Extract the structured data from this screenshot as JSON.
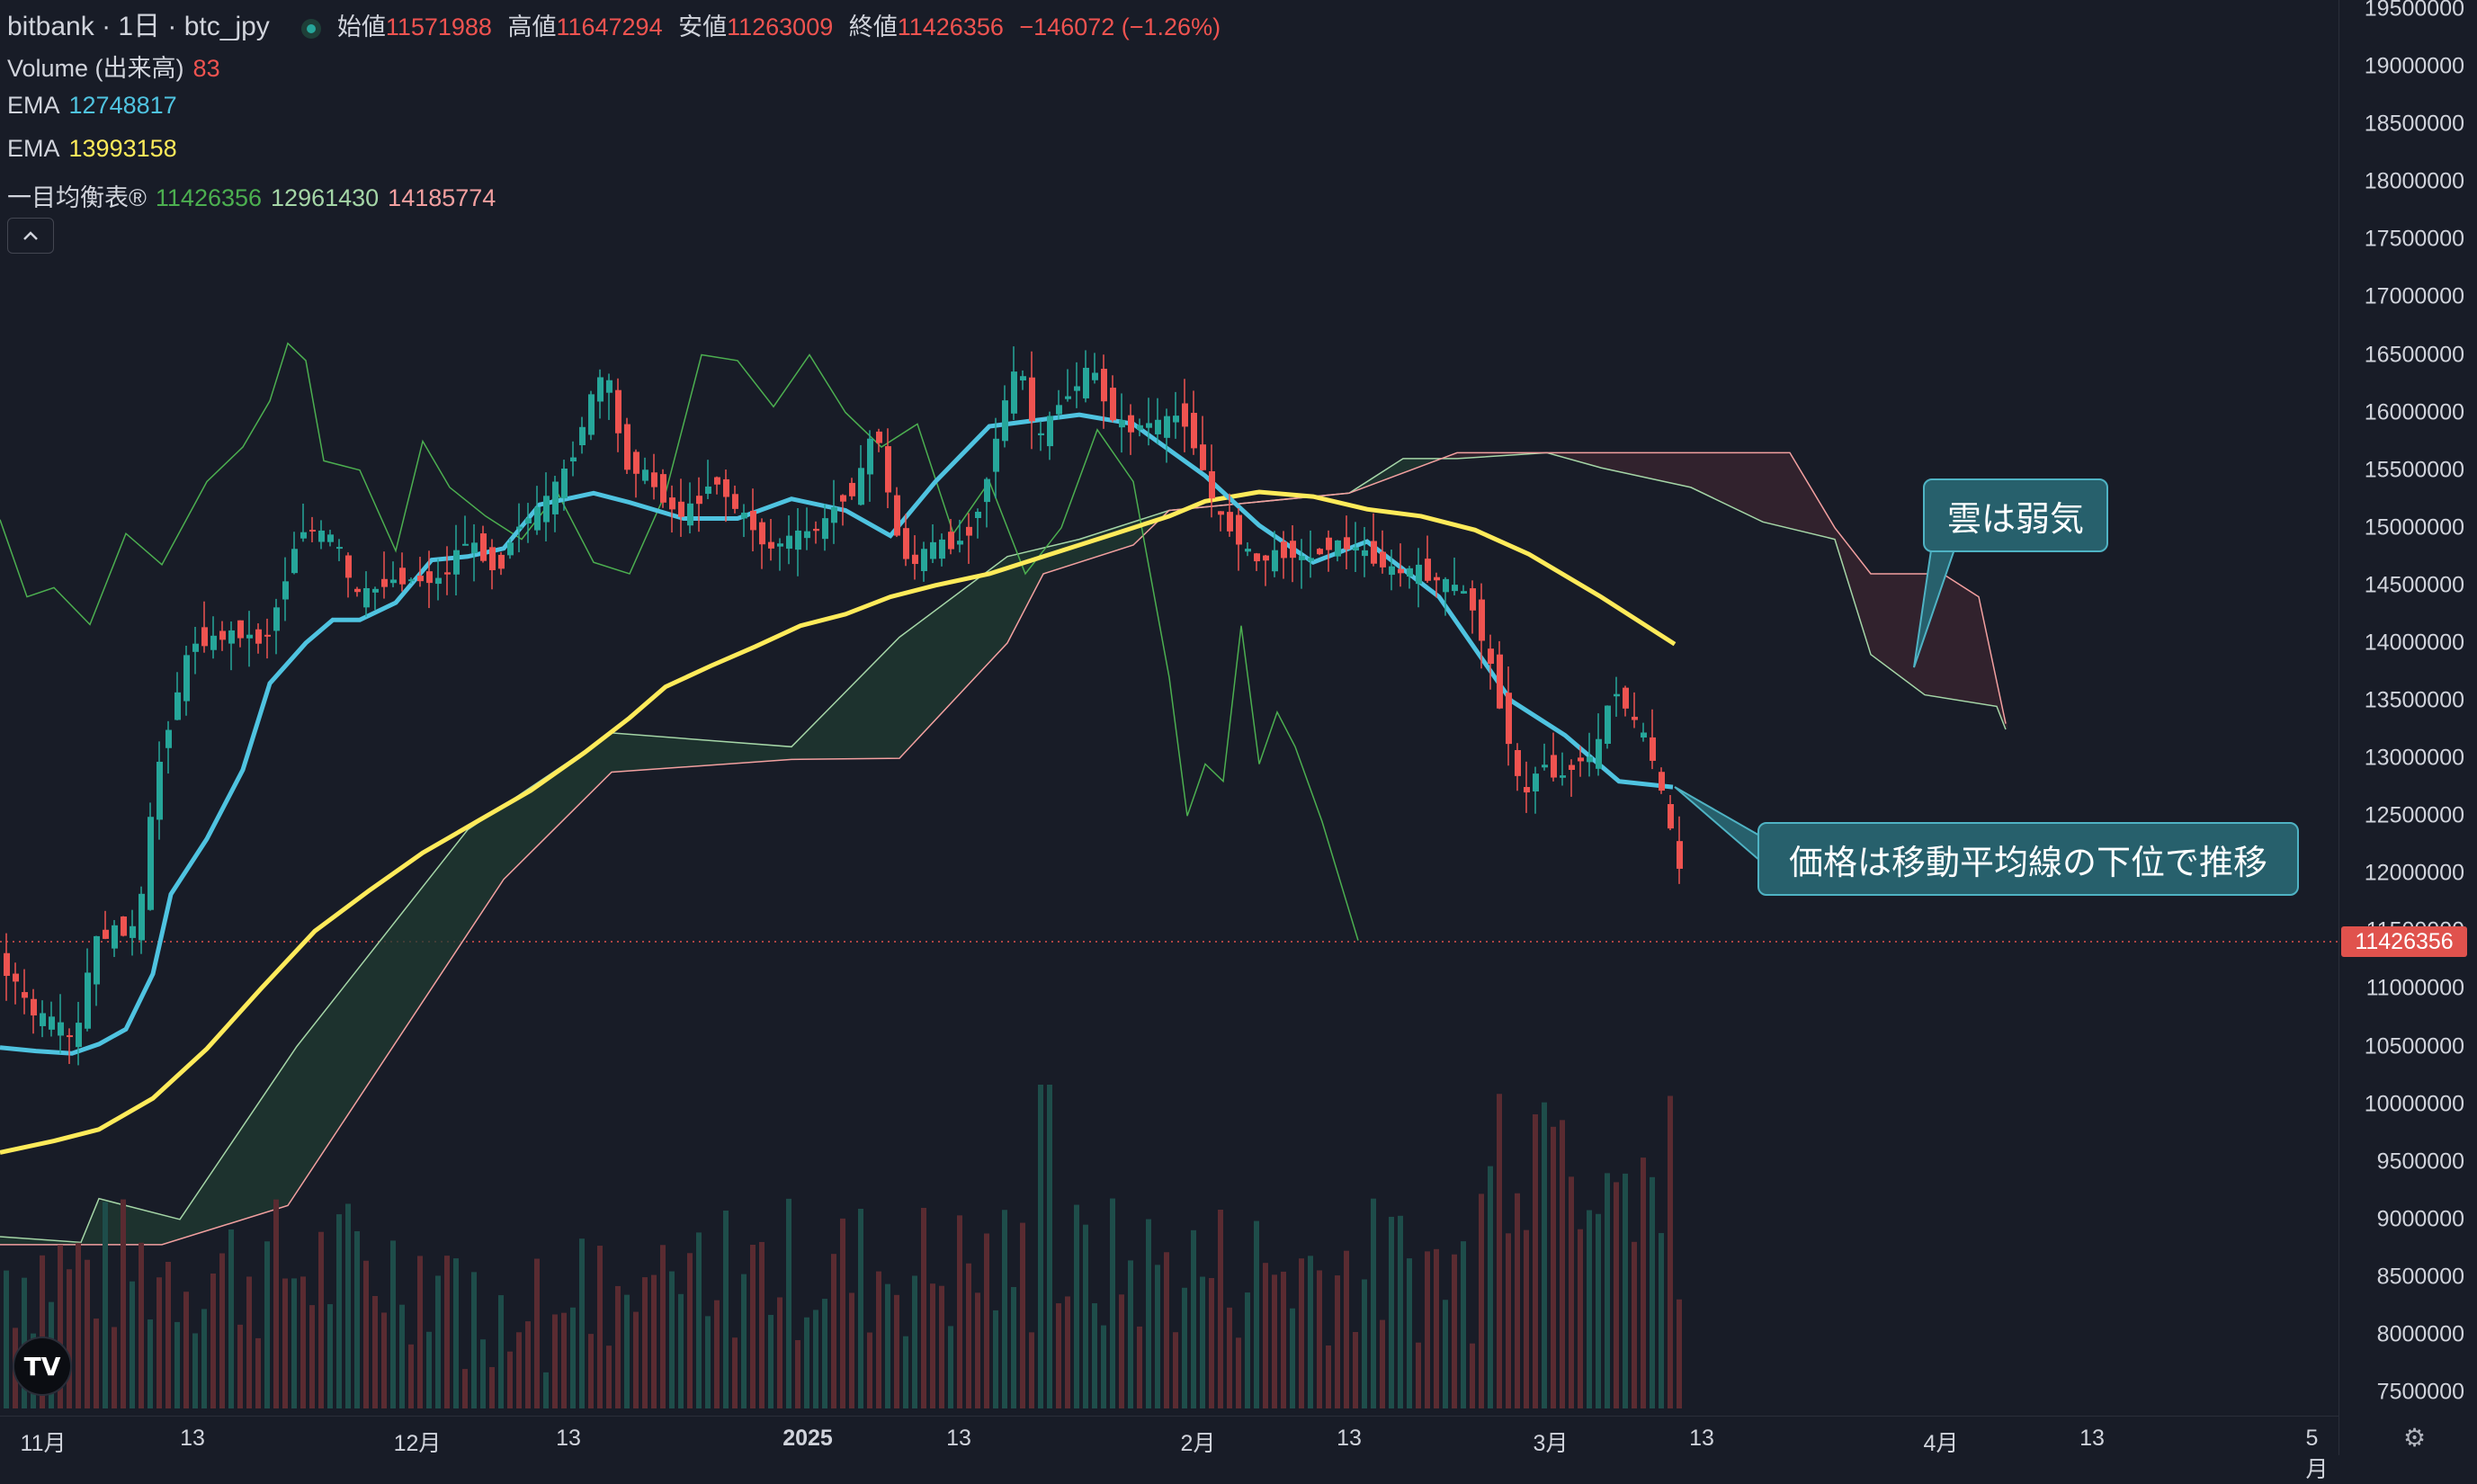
{
  "header": {
    "title": "bitbank · 1日 · btc_jpy",
    "open_label": "始値",
    "open": "11571988",
    "high_label": "高値",
    "high": "11647294",
    "low_label": "安値",
    "low": "11263009",
    "close_label": "終値",
    "close": "11426356",
    "change": "−146072 (−1.26%)"
  },
  "indicators": {
    "volume_label": "Volume (出来高)",
    "volume_value": "83",
    "ema1_label": "EMA",
    "ema1_value": "12748817",
    "ema2_label": "EMA",
    "ema2_value": "13993158",
    "ichimoku_label": "一目均衡表®",
    "ichimoku_v1": "11426356",
    "ichimoku_v2": "12961430",
    "ichimoku_v3": "14185774",
    "collapse_icon": "chevron-up-icon"
  },
  "y_axis": [
    "19500000",
    "19000000",
    "18500000",
    "18000000",
    "17500000",
    "17000000",
    "16500000",
    "16000000",
    "15500000",
    "15000000",
    "14500000",
    "14000000",
    "13500000",
    "13000000",
    "12500000",
    "12000000",
    "11500000",
    "11000000",
    "10500000",
    "10000000",
    "9500000",
    "9000000",
    "8500000",
    "8000000",
    "7500000"
  ],
  "x_axis": [
    {
      "label": "11月",
      "bold": false
    },
    {
      "label": "13",
      "bold": false
    },
    {
      "label": "12月",
      "bold": false
    },
    {
      "label": "13",
      "bold": false
    },
    {
      "label": "2025",
      "bold": true
    },
    {
      "label": "13",
      "bold": false
    },
    {
      "label": "2月",
      "bold": false
    },
    {
      "label": "13",
      "bold": false
    },
    {
      "label": "3月",
      "bold": false
    },
    {
      "label": "13",
      "bold": false
    },
    {
      "label": "4月",
      "bold": false
    },
    {
      "label": "13",
      "bold": false
    },
    {
      "label": "5月",
      "bold": false
    }
  ],
  "current_price": "11426356",
  "annotations": {
    "cloud_note": "雲は弱気",
    "price_note": "価格は移動平均線の下位で推移"
  },
  "colors": {
    "background": "#181c27",
    "up": "#26a69a",
    "down": "#ef5350",
    "ema_fast": "#4fc3e0",
    "ema_slow": "#ffeb5a",
    "cloud_bull": "#1f3a32",
    "cloud_bear": "#3a2430",
    "span_a": "#a5d6a7",
    "span_b": "#f3a0a0",
    "lagging": "#4caf50"
  },
  "logo": "tradingview-logo",
  "settings_icon": "gear-icon",
  "chart_data": {
    "type": "candlestick",
    "symbol": "btc_jpy",
    "interval": "1日",
    "ylim": [
      7500000,
      19500000
    ],
    "series": [
      {
        "name": "EMA",
        "values": [
          10490000,
          10460000,
          10440000,
          10520000,
          10650000,
          11130000,
          11820000,
          12300000,
          12900000,
          13650000,
          14000000,
          14200000,
          14200000,
          14350000,
          14720000,
          14750000,
          14820000,
          15200000,
          15300000,
          15220000,
          15080000,
          15080000,
          15250000,
          15150000,
          14930000,
          15400000,
          15880000,
          15980000,
          15900000,
          15450000,
          15020000,
          14700000,
          14880000,
          14400000,
          13500000,
          13200000,
          12800000,
          12750000
        ]
      },
      {
        "name": "EMA",
        "values": [
          9580000,
          9680000,
          9780000,
          10050000,
          10480000,
          11000000,
          11500000,
          11850000,
          12180000,
          12450000,
          12720000,
          13050000,
          13350000,
          13620000,
          13800000,
          13970000,
          14150000,
          14250000,
          14400000,
          14500000,
          14600000,
          14750000,
          14950000,
          15100000,
          15230000,
          15310000,
          15270000,
          15160000,
          15100000,
          14980000,
          14770000,
          14400000,
          13990000
        ]
      }
    ],
    "last": {
      "open": 11571988,
      "high": 11647294,
      "low": 11263009,
      "close": 11426356
    }
  }
}
